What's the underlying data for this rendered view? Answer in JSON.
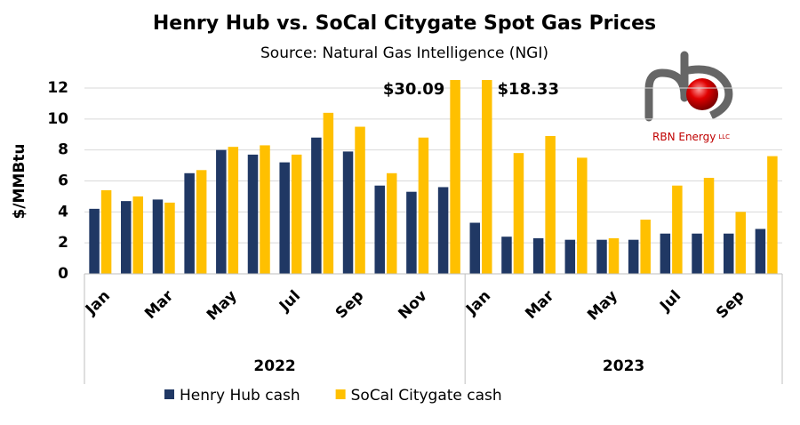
{
  "chart_data": {
    "type": "bar",
    "title": "Henry Hub vs. SoCal Citygate Spot Gas Prices",
    "subtitle": "Source: Natural Gas Intelligence (NGI)",
    "y_label": "$/MMBtu",
    "groups": [
      {
        "name": "2022",
        "categories": [
          "Jan",
          null,
          "Mar",
          null,
          "May",
          null,
          "Jul",
          null,
          "Sep",
          null,
          "Nov",
          null
        ]
      },
      {
        "name": "2023",
        "categories": [
          "Jan",
          null,
          "Mar",
          null,
          "May",
          null,
          "Jul",
          null,
          "Sep",
          null
        ]
      }
    ],
    "series": [
      {
        "name": "Henry Hub cash",
        "color": "#203864",
        "values": [
          4.2,
          4.7,
          4.8,
          6.5,
          8.0,
          7.7,
          7.2,
          8.8,
          7.9,
          5.7,
          5.3,
          5.6,
          3.3,
          2.4,
          2.3,
          2.2,
          2.2,
          2.2,
          2.6,
          2.6,
          2.6,
          2.9
        ]
      },
      {
        "name": "SoCal Citygate cash",
        "color": "#ffc000",
        "values": [
          5.4,
          5.0,
          4.6,
          6.7,
          8.2,
          8.3,
          7.7,
          10.4,
          9.5,
          6.5,
          8.8,
          30.09,
          18.33,
          7.8,
          8.9,
          7.5,
          2.3,
          3.5,
          5.7,
          6.2,
          4.0,
          7.6
        ],
        "value_labels": [
          null,
          null,
          null,
          null,
          null,
          null,
          null,
          null,
          null,
          null,
          null,
          "$30.09",
          "$18.33",
          null,
          null,
          null,
          null,
          null,
          null,
          null,
          null,
          null
        ]
      }
    ],
    "ylim": [
      0,
      12
    ],
    "yticks": [
      0,
      2,
      4,
      6,
      8,
      10,
      12
    ],
    "grid": true,
    "legend": "bottom",
    "logo": {
      "text": "RBN Energy",
      "suffix": "LLC"
    }
  }
}
